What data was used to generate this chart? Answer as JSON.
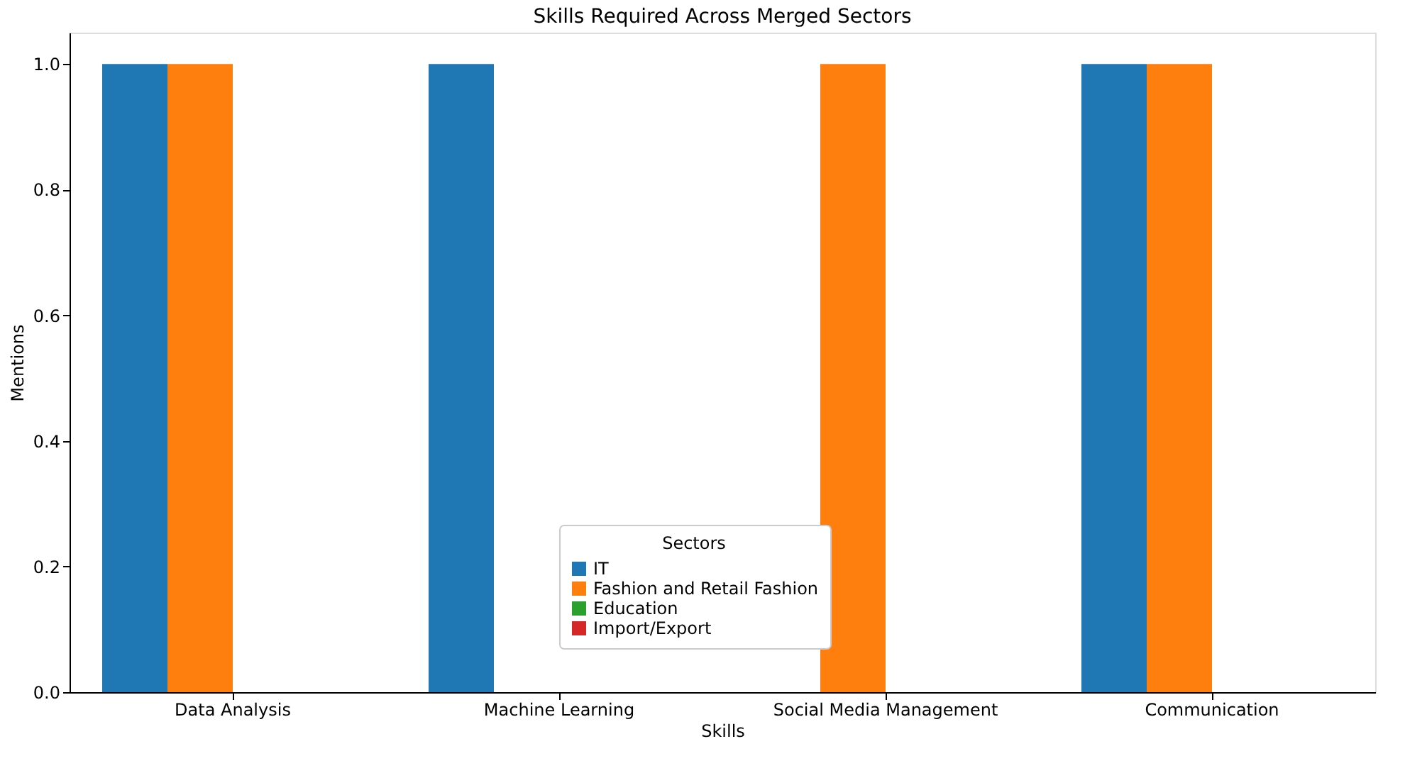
{
  "chart_data": {
    "type": "bar",
    "title": "Skills Required Across Merged Sectors",
    "xlabel": "Skills",
    "ylabel": "Mentions",
    "legend_title": "Sectors",
    "categories": [
      "Data Analysis",
      "Machine Learning",
      "Social Media Management",
      "Communication"
    ],
    "series": [
      {
        "name": "IT",
        "color": "#1f77b4",
        "values": [
          1,
          1,
          0,
          1
        ]
      },
      {
        "name": "Fashion and Retail Fashion",
        "color": "#ff7f0e",
        "values": [
          1,
          0,
          1,
          1
        ]
      },
      {
        "name": "Education",
        "color": "#2ca02c",
        "values": [
          0,
          0,
          0,
          0
        ]
      },
      {
        "name": "Import/Export",
        "color": "#d62728",
        "values": [
          0,
          0,
          0,
          0
        ]
      }
    ],
    "ylim": [
      0,
      1.05
    ],
    "yticks": [
      {
        "value": 0,
        "label": "0.0"
      },
      0.2,
      0.4,
      0.6,
      0.8,
      {
        "value": 1,
        "label": "1.0"
      }
    ],
    "grid": false,
    "legend": "bottom"
  }
}
